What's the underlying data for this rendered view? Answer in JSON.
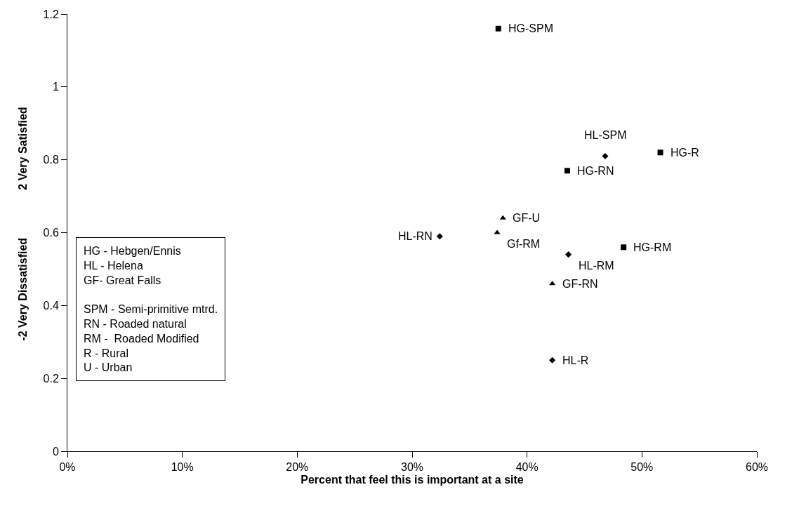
{
  "chart_data": {
    "type": "scatter",
    "xlabel": "Percent that feel this is important at a site",
    "ylabel": "2 Very Satisfied",
    "xlim": [
      0,
      60
    ],
    "ylim": [
      0,
      1.2
    ],
    "xticks": [
      {
        "value": 0,
        "label": "0%"
      },
      {
        "value": 10,
        "label": "10%"
      },
      {
        "value": 20,
        "label": "20%"
      },
      {
        "value": 30,
        "label": "30%"
      },
      {
        "value": 40,
        "label": "40%"
      },
      {
        "value": 50,
        "label": "50%"
      },
      {
        "value": 60,
        "label": "60%"
      }
    ],
    "yticks": [
      0,
      0.2,
      0.4,
      0.6,
      0.8,
      1,
      1.2
    ],
    "series": [
      {
        "color": "#000000",
        "marker": "square",
        "x": [
          37.5,
          51.6,
          43.5,
          48.4
        ],
        "values": [
          1.16,
          0.82,
          0.77,
          0.56
        ]
      },
      {
        "color": "#000000",
        "marker": "diamond",
        "x": [
          46.8,
          32.4,
          43.6,
          42.2
        ],
        "values": [
          0.81,
          0.59,
          0.54,
          0.25
        ]
      },
      {
        "color": "#000000",
        "marker": "triangle",
        "x": [
          37.9,
          37.4,
          42.2
        ],
        "values": [
          0.64,
          0.6,
          0.46
        ]
      }
    ],
    "annotations": [
      "-2 Very Dissatisfied",
      "HG - Hebgen/Ennis\nHL - Helena\nGF- Great Falls\n\nSPM - Semi-primitive mtrd.\nRN - Roaded natural\nRM -  Roaded Modified\nR - Rural\nU - Urban",
      {
        "text": "HG-SPM",
        "x": 37.5,
        "y": 1.16
      },
      {
        "text": "HG-R",
        "x": 51.6,
        "y": 0.82
      },
      {
        "text": "HG-RN",
        "x": 43.5,
        "y": 0.77
      },
      {
        "text": "HG-RM",
        "x": 48.4,
        "y": 0.56
      },
      {
        "text": "HL-SPM",
        "x": 46.8,
        "y": 0.81
      },
      {
        "text": "HL-RN",
        "x": 32.4,
        "y": 0.59
      },
      {
        "text": "HL-RM",
        "x": 43.6,
        "y": 0.54
      },
      {
        "text": "HL-R",
        "x": 42.2,
        "y": 0.25
      },
      {
        "text": "GF-U",
        "x": 37.9,
        "y": 0.64
      },
      {
        "text": "Gf-RM",
        "x": 37.4,
        "y": 0.6
      },
      {
        "text": "GF-RN",
        "x": 42.2,
        "y": 0.46
      }
    ]
  }
}
